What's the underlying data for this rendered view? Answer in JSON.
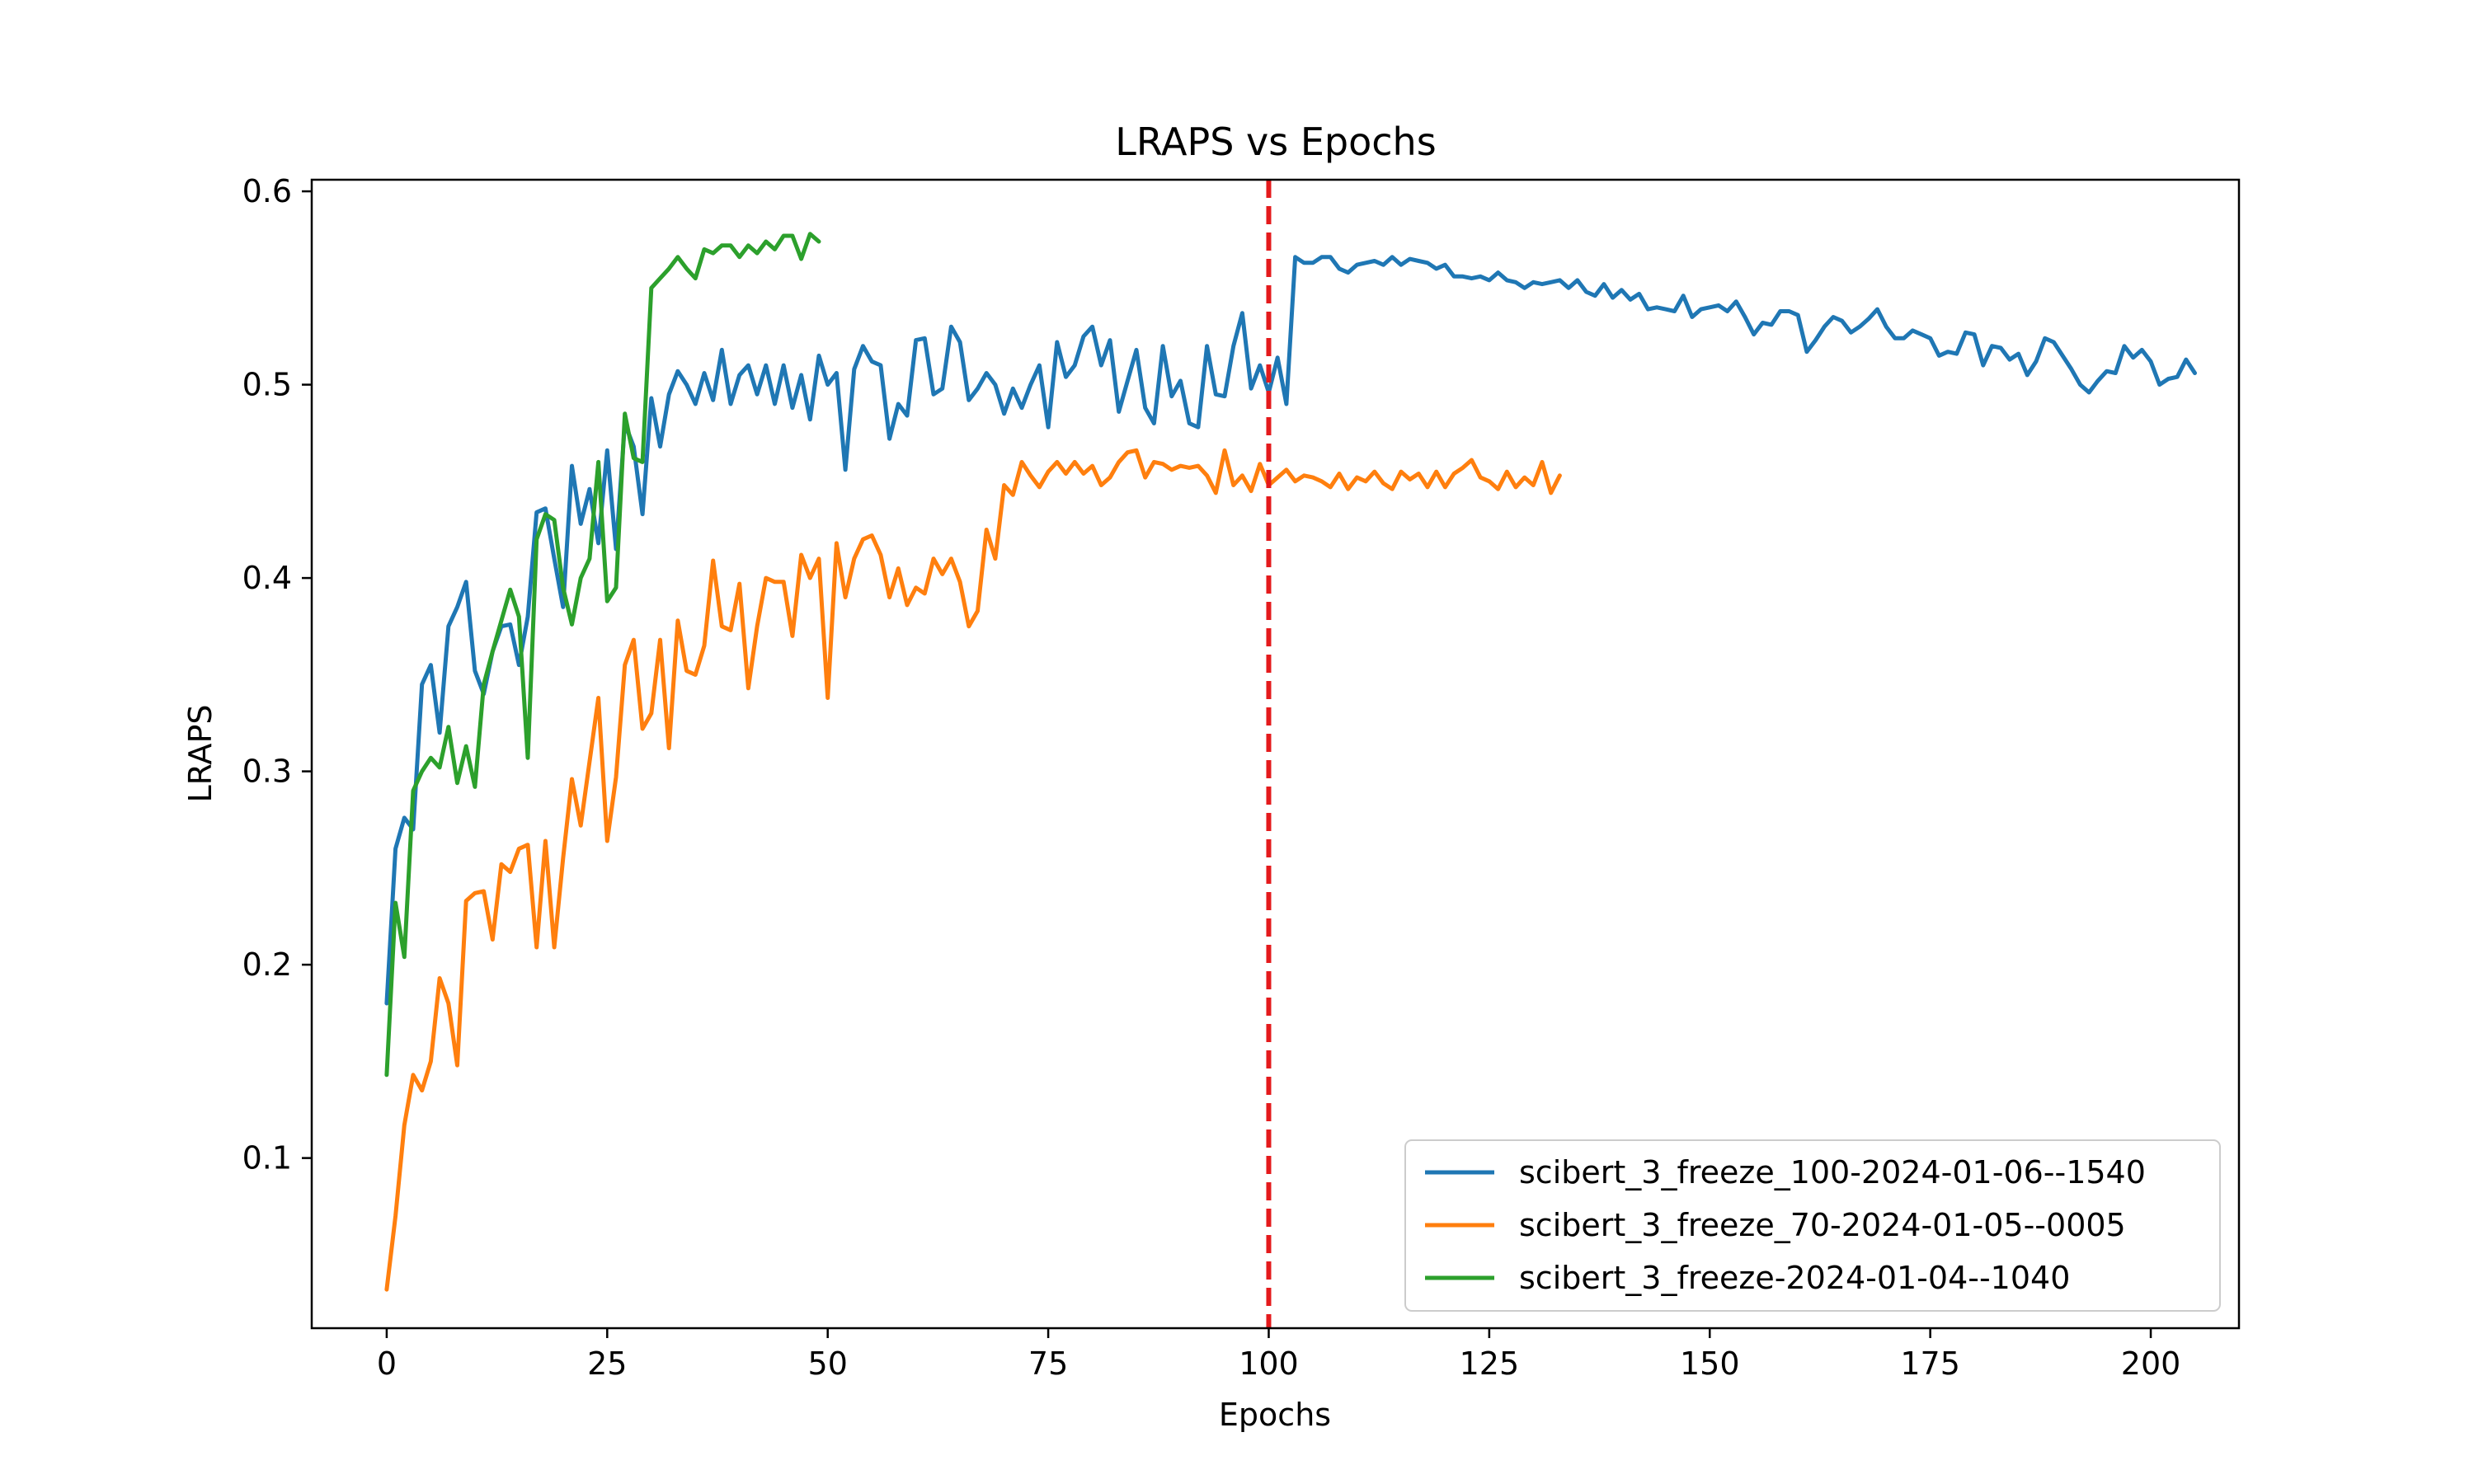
{
  "chart_data": {
    "type": "line",
    "title": "LRAPS vs Epochs",
    "xlabel": "Epochs",
    "ylabel": "LRAPS",
    "xlim": [
      -8.5,
      210
    ],
    "ylim": [
      0.012,
      0.606
    ],
    "xticks": [
      0,
      25,
      50,
      75,
      100,
      125,
      150,
      175,
      200
    ],
    "yticks": [
      0.1,
      0.2,
      0.3,
      0.4,
      0.5,
      0.6
    ],
    "xtick_labels": [
      "0",
      "25",
      "50",
      "75",
      "100",
      "125",
      "150",
      "175",
      "200"
    ],
    "ytick_labels": [
      "0.1",
      "0.2",
      "0.3",
      "0.4",
      "0.5",
      "0.6"
    ],
    "grid": false,
    "legend_position": "lower-right",
    "reference_line": {
      "x": 100,
      "color": "#e41a1c",
      "style": "dashed"
    },
    "series": [
      {
        "name": "scibert_3_freeze_100-2024-01-06--1540",
        "color": "#1f77b4",
        "x_start": 0,
        "values": [
          0.18,
          0.26,
          0.276,
          0.27,
          0.345,
          0.355,
          0.32,
          0.375,
          0.385,
          0.398,
          0.352,
          0.34,
          0.362,
          0.375,
          0.376,
          0.355,
          0.38,
          0.434,
          0.436,
          0.41,
          0.385,
          0.458,
          0.428,
          0.446,
          0.418,
          0.466,
          0.415,
          0.48,
          0.468,
          0.433,
          0.493,
          0.468,
          0.495,
          0.507,
          0.5,
          0.49,
          0.506,
          0.492,
          0.518,
          0.49,
          0.505,
          0.51,
          0.495,
          0.51,
          0.49,
          0.51,
          0.488,
          0.505,
          0.482,
          0.515,
          0.5,
          0.506,
          0.456,
          0.508,
          0.52,
          0.512,
          0.51,
          0.472,
          0.49,
          0.484,
          0.523,
          0.524,
          0.495,
          0.498,
          0.53,
          0.522,
          0.492,
          0.498,
          0.506,
          0.5,
          0.485,
          0.498,
          0.488,
          0.5,
          0.51,
          0.478,
          0.522,
          0.504,
          0.51,
          0.525,
          0.53,
          0.51,
          0.523,
          0.486,
          0.502,
          0.518,
          0.488,
          0.48,
          0.52,
          0.494,
          0.502,
          0.48,
          0.478,
          0.52,
          0.495,
          0.494,
          0.52,
          0.537,
          0.498,
          0.51,
          0.496,
          0.514,
          0.49,
          0.566,
          0.563,
          0.563,
          0.566,
          0.566,
          0.56,
          0.558,
          0.562,
          0.563,
          0.564,
          0.562,
          0.566,
          0.562,
          0.565,
          0.564,
          0.563,
          0.56,
          0.562,
          0.556,
          0.556,
          0.555,
          0.556,
          0.554,
          0.558,
          0.554,
          0.553,
          0.55,
          0.553,
          0.552,
          0.553,
          0.554,
          0.55,
          0.554,
          0.548,
          0.546,
          0.552,
          0.545,
          0.549,
          0.544,
          0.547,
          0.539,
          0.54,
          0.539,
          0.538,
          0.546,
          0.535,
          0.539,
          0.54,
          0.541,
          0.538,
          0.543,
          0.535,
          0.526,
          0.532,
          0.531,
          0.538,
          0.538,
          0.536,
          0.517,
          0.523,
          0.53,
          0.535,
          0.533,
          0.527,
          0.53,
          0.534,
          0.539,
          0.53,
          0.524,
          0.524,
          0.528,
          0.526,
          0.524,
          0.515,
          0.517,
          0.516,
          0.527,
          0.526,
          0.51,
          0.52,
          0.519,
          0.513,
          0.516,
          0.505,
          0.512,
          0.524,
          0.522,
          0.515,
          0.508,
          0.5,
          0.496,
          0.502,
          0.507,
          0.506,
          0.52,
          0.514,
          0.518,
          0.512,
          0.5,
          0.503,
          0.504,
          0.513,
          0.506
        ]
      },
      {
        "name": "scibert_3_freeze_70-2024-01-05--0005",
        "color": "#ff7f0e",
        "x_start": 0,
        "values": [
          0.032,
          0.07,
          0.117,
          0.143,
          0.135,
          0.15,
          0.193,
          0.18,
          0.148,
          0.233,
          0.237,
          0.238,
          0.213,
          0.252,
          0.248,
          0.26,
          0.262,
          0.209,
          0.264,
          0.209,
          0.255,
          0.296,
          0.272,
          0.305,
          0.338,
          0.264,
          0.297,
          0.355,
          0.368,
          0.322,
          0.33,
          0.368,
          0.312,
          0.378,
          0.352,
          0.35,
          0.365,
          0.409,
          0.375,
          0.373,
          0.397,
          0.343,
          0.375,
          0.4,
          0.398,
          0.398,
          0.37,
          0.412,
          0.4,
          0.41,
          0.338,
          0.418,
          0.39,
          0.41,
          0.42,
          0.422,
          0.412,
          0.39,
          0.405,
          0.386,
          0.395,
          0.392,
          0.41,
          0.402,
          0.41,
          0.398,
          0.375,
          0.383,
          0.425,
          0.41,
          0.448,
          0.443,
          0.46,
          0.453,
          0.447,
          0.455,
          0.46,
          0.454,
          0.46,
          0.454,
          0.458,
          0.448,
          0.452,
          0.46,
          0.465,
          0.466,
          0.452,
          0.46,
          0.459,
          0.456,
          0.458,
          0.457,
          0.458,
          0.453,
          0.444,
          0.466,
          0.448,
          0.453,
          0.445,
          0.459,
          0.448,
          0.452,
          0.456,
          0.45,
          0.453,
          0.452,
          0.45,
          0.447,
          0.454,
          0.446,
          0.452,
          0.45,
          0.455,
          0.449,
          0.446,
          0.455,
          0.451,
          0.454,
          0.447,
          0.455,
          0.447,
          0.454,
          0.457,
          0.461,
          0.452,
          0.45,
          0.446,
          0.455,
          0.447,
          0.452,
          0.448,
          0.46,
          0.444,
          0.453
        ]
      },
      {
        "name": "scibert_3_freeze-2024-01-04--1040",
        "color": "#2ca02c",
        "x_start": 0,
        "values": [
          0.143,
          0.232,
          0.204,
          0.29,
          0.3,
          0.307,
          0.302,
          0.323,
          0.294,
          0.313,
          0.292,
          0.345,
          0.362,
          0.378,
          0.394,
          0.38,
          0.307,
          0.42,
          0.433,
          0.43,
          0.395,
          0.376,
          0.4,
          0.41,
          0.46,
          0.388,
          0.395,
          0.485,
          0.462,
          0.46,
          0.55,
          0.555,
          0.56,
          0.566,
          0.56,
          0.555,
          0.57,
          0.568,
          0.572,
          0.572,
          0.566,
          0.572,
          0.568,
          0.574,
          0.57,
          0.577,
          0.577,
          0.565,
          0.578,
          0.574
        ]
      }
    ]
  }
}
